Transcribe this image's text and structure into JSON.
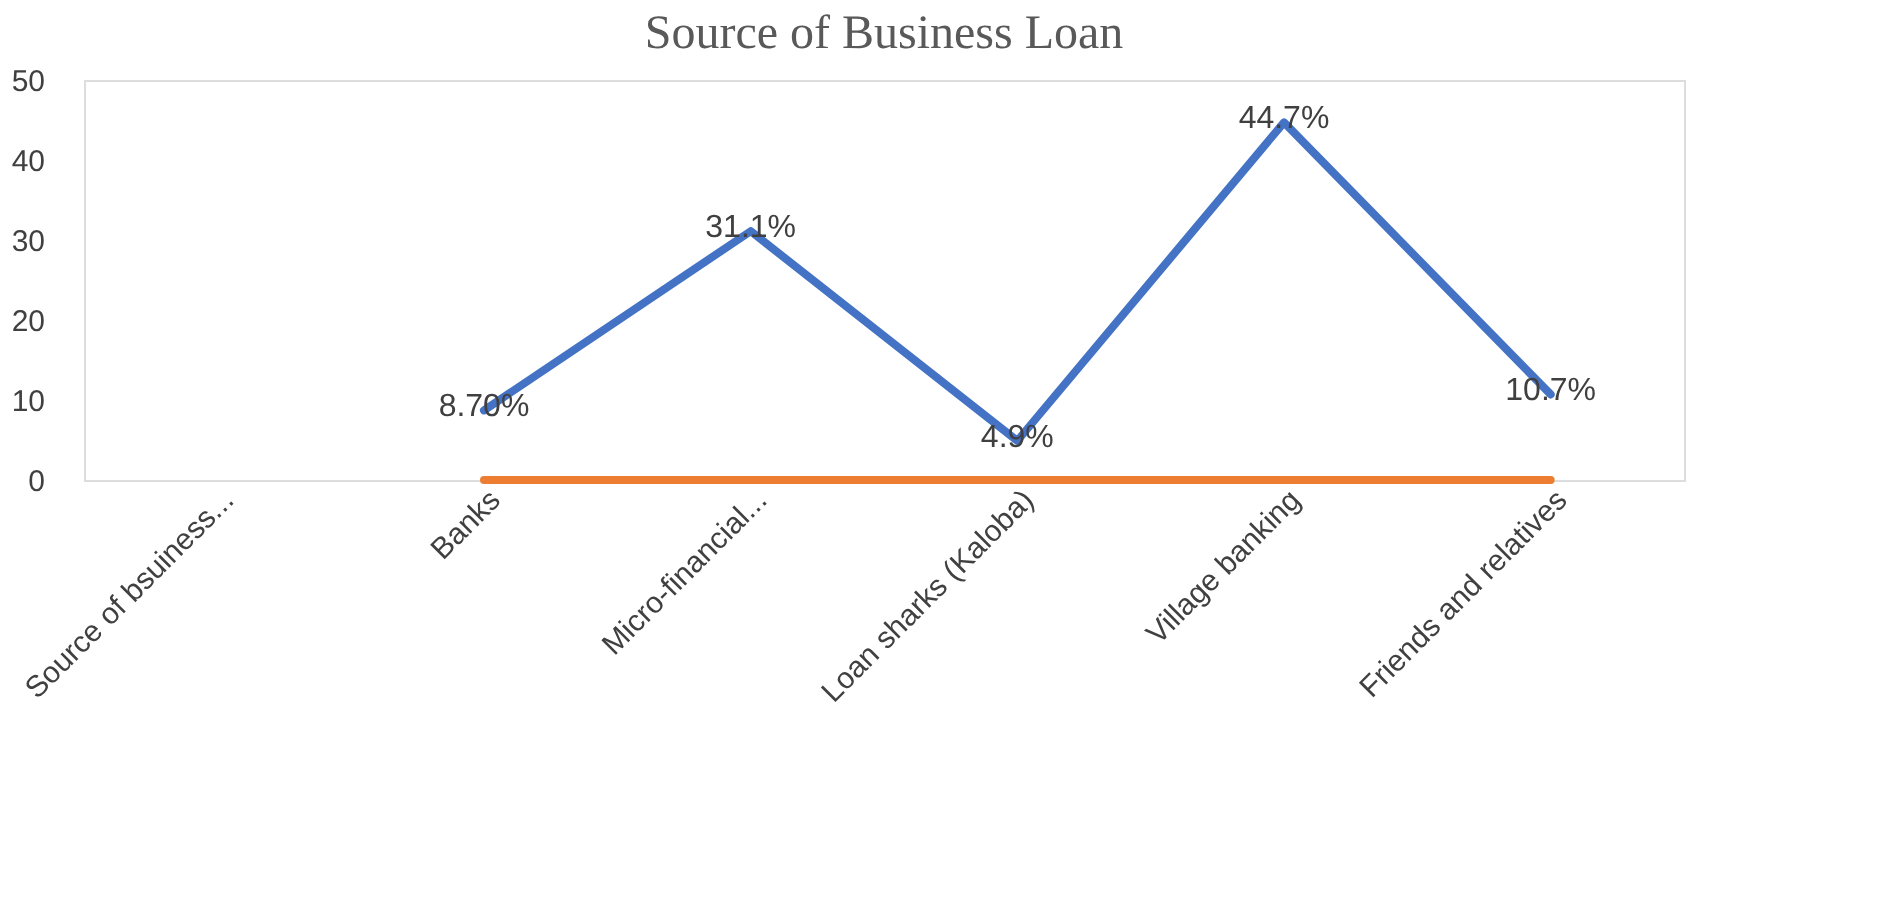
{
  "chart_data": {
    "type": "line",
    "title": "Source of Business Loan",
    "categories": [
      "Source of bsuiness...",
      "Banks",
      "Micro-financial...",
      "Loan sharks (Kaloba)",
      "Village banking",
      "Friends and relatives"
    ],
    "series": [
      {
        "color": "#4472c4",
        "values": [
          null,
          8.7,
          31.1,
          4.9,
          44.7,
          10.7
        ],
        "value_labels": [
          null,
          "8.70%",
          "31.1%",
          "4.9%",
          "44.7%",
          "10.7%"
        ]
      },
      {
        "color": "#ed7d31",
        "values": [
          null,
          0,
          0,
          0,
          0,
          0
        ]
      }
    ],
    "ylim": [
      0,
      50
    ],
    "yticks": [
      0,
      10,
      20,
      30,
      40,
      50
    ],
    "grid": false,
    "legend": false,
    "marker": "none",
    "line_style": "solid"
  }
}
